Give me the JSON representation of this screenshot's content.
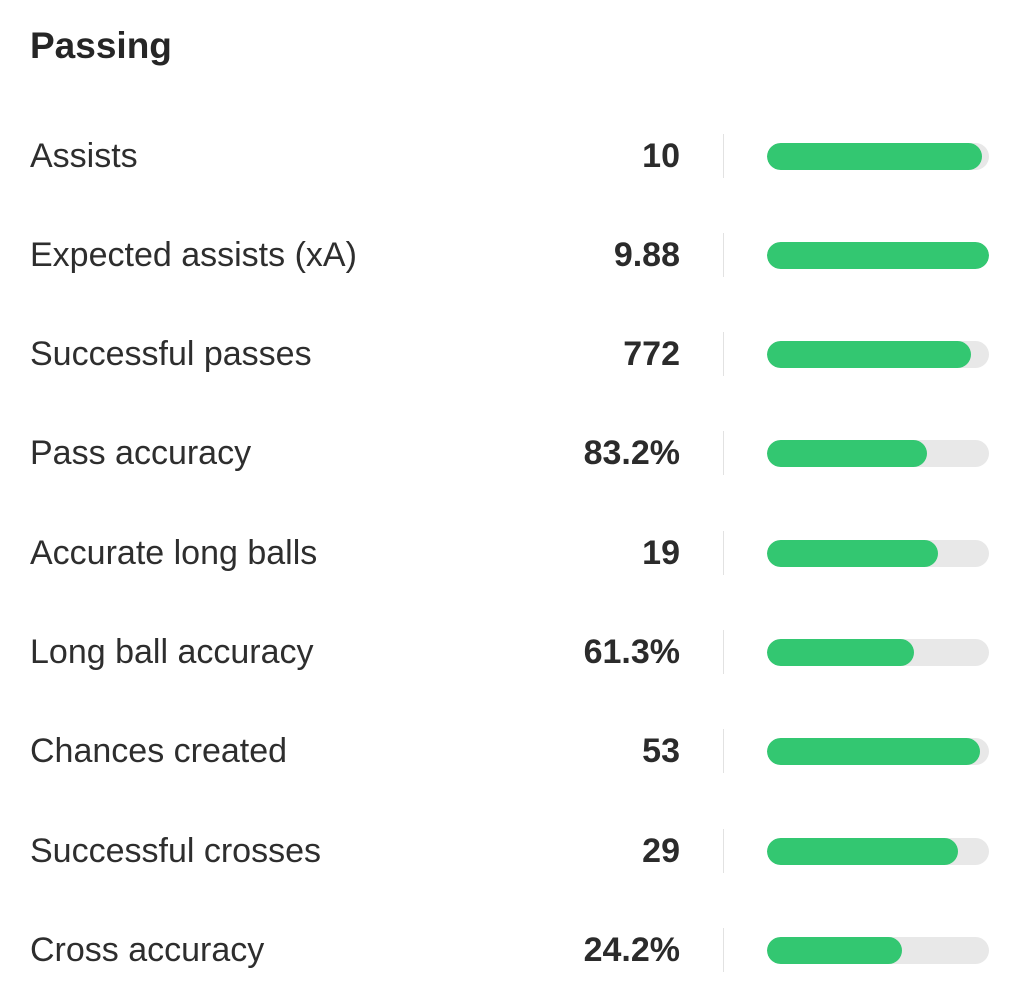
{
  "section": {
    "title": "Passing",
    "accent_color": "#33c771",
    "track_color": "#e8e8e8"
  },
  "stats": [
    {
      "label": "Assists",
      "value": "10",
      "fill": 0.97
    },
    {
      "label": "Expected assists (xA)",
      "value": "9.88",
      "fill": 1.0
    },
    {
      "label": "Successful passes",
      "value": "772",
      "fill": 0.92
    },
    {
      "label": "Pass accuracy",
      "value": "83.2%",
      "fill": 0.72
    },
    {
      "label": "Accurate long balls",
      "value": "19",
      "fill": 0.77
    },
    {
      "label": "Long ball accuracy",
      "value": "61.3%",
      "fill": 0.66
    },
    {
      "label": "Chances created",
      "value": "53",
      "fill": 0.96
    },
    {
      "label": "Successful crosses",
      "value": "29",
      "fill": 0.86
    },
    {
      "label": "Cross accuracy",
      "value": "24.2%",
      "fill": 0.61
    }
  ]
}
